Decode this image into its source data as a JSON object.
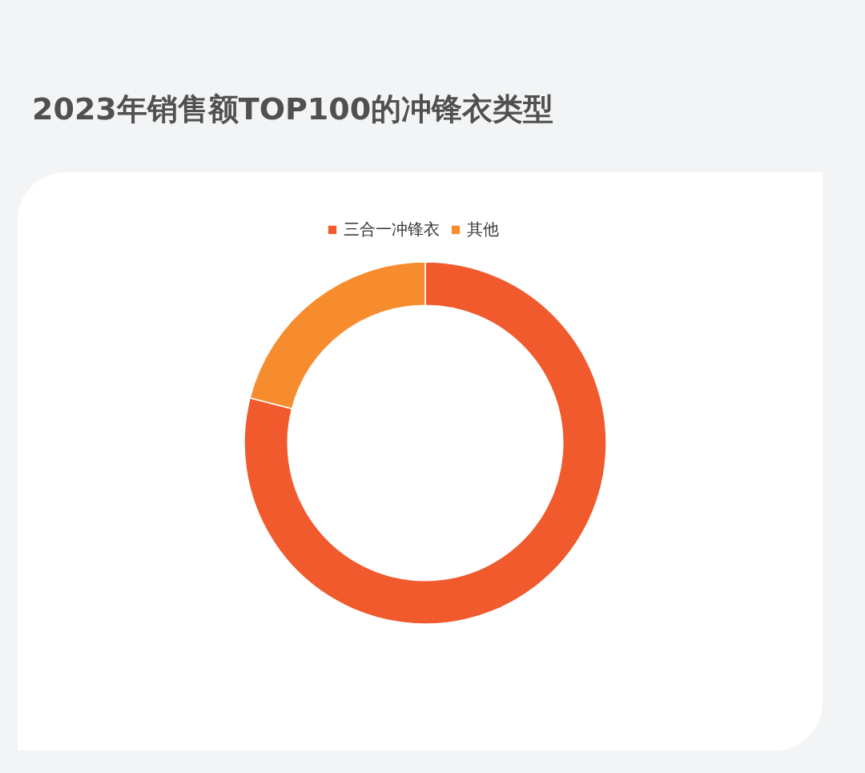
{
  "chart_data": {
    "type": "donut",
    "title": "2023年销售额TOP100的冲锋衣类型",
    "categories": [
      "三合一冲锋衣",
      "其他"
    ],
    "values": [
      79,
      21
    ],
    "colors": [
      "#f05a2d",
      "#f78c2f"
    ],
    "legend": "top"
  }
}
